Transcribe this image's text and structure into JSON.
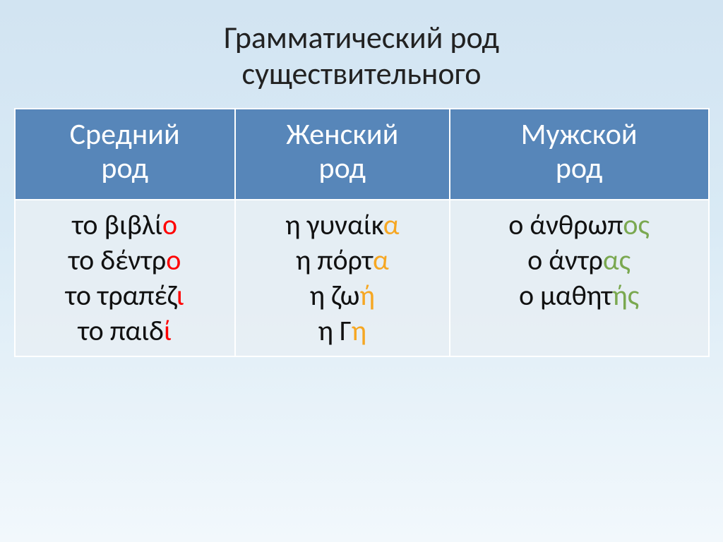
{
  "title_line1": "Грамматический род",
  "title_line2": "существительного",
  "title_fontsize_pt": 44,
  "background_gradient": [
    "#d2e4f2",
    "#f2f8fc"
  ],
  "table": {
    "border_color": "#ffffff",
    "header_bg": "#5786b9",
    "header_fg": "#ffffff",
    "header_fontsize_pt": 42,
    "cell_bg": "#e8eef4",
    "cell_fg": "#111111",
    "cell_fontsize_pt": 40,
    "columns": [
      {
        "line1": "Средний",
        "line2": "род"
      },
      {
        "line1": "Женский",
        "line2": "род"
      },
      {
        "line1": "Мужской",
        "line2": "род"
      }
    ],
    "highlight_colors": {
      "red": "#ff0000",
      "orange": "#f6a723",
      "green": "#7aa850"
    },
    "cells": {
      "neuter": [
        {
          "prefix": "το βιβλί",
          "suffix": "ο",
          "color": "red"
        },
        {
          "prefix": "το δέντρ",
          "suffix": "ο",
          "color": "red"
        },
        {
          "prefix": "το τραπέζ",
          "suffix": "ι",
          "color": "red"
        },
        {
          "prefix": "το παιδ",
          "suffix": "ί",
          "color": "red"
        }
      ],
      "feminine": [
        {
          "prefix": "η γυναίκ",
          "suffix": "α",
          "color": "orange"
        },
        {
          "prefix": "η πόρτ",
          "suffix": "α",
          "color": "orange"
        },
        {
          "prefix": "η ζω",
          "suffix": "ή",
          "color": "orange"
        },
        {
          "prefix": "η Γ",
          "suffix": "η",
          "color": "orange"
        }
      ],
      "masculine": [
        {
          "prefix": "ο άνθρωπ",
          "suffix": "ος",
          "color": "green"
        },
        {
          "prefix": "ο άντρ",
          "suffix": "ας",
          "color": "green"
        },
        {
          "prefix": "ο μαθητ",
          "suffix": "ής",
          "color": "green"
        }
      ]
    }
  }
}
